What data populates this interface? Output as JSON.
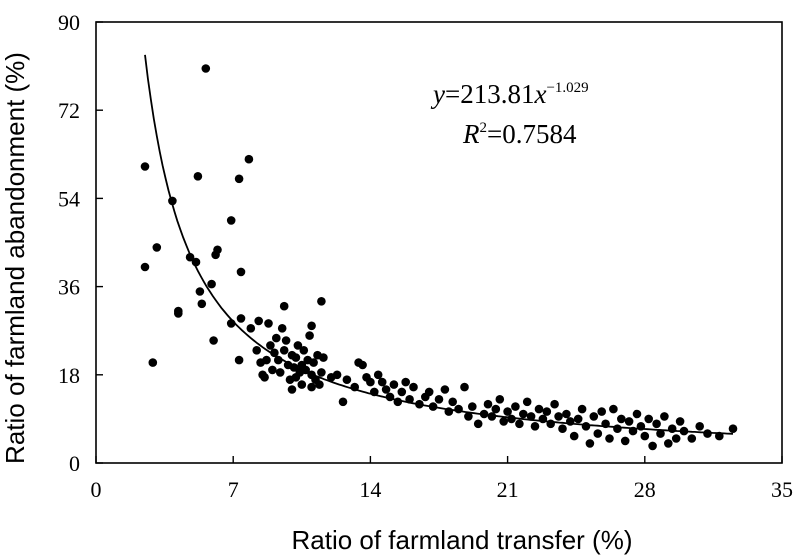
{
  "chart_data": {
    "type": "scatter",
    "xlabel": "Ratio of farmland transfer (%)",
    "ylabel": "Ratio of farmland abandonment (%)",
    "xlim": [
      0,
      35
    ],
    "ylim": [
      0,
      90
    ],
    "xticks": [
      "0",
      "7",
      "14",
      "21",
      "28",
      "35"
    ],
    "yticks": [
      "0",
      "18",
      "36",
      "54",
      "72",
      "90"
    ],
    "grid": false,
    "legend": "none",
    "annotations": {
      "equation": {
        "y": "y",
        "eq1": "=213.81",
        "x": "x",
        "exponent": "−1.029"
      },
      "r2": {
        "r": "R",
        "sup": "2",
        "value": "=0.7584"
      }
    },
    "fit": {
      "type": "power",
      "a": 213.81,
      "b": -1.029,
      "x_range": [
        2.5,
        32.5
      ]
    },
    "series": [
      {
        "points": [
          [
            2.5,
            40
          ],
          [
            2.5,
            60.5
          ],
          [
            2.9,
            20.5
          ],
          [
            3.1,
            44
          ],
          [
            3.9,
            53.5
          ],
          [
            4.2,
            30.5
          ],
          [
            4.2,
            31
          ],
          [
            4.8,
            42
          ],
          [
            5.1,
            41
          ],
          [
            5.2,
            58.5
          ],
          [
            5.3,
            35
          ],
          [
            5.4,
            32.5
          ],
          [
            5.6,
            80.5
          ],
          [
            5.9,
            36.5
          ],
          [
            6.0,
            25
          ],
          [
            6.1,
            42.5
          ],
          [
            6.2,
            43.5
          ],
          [
            6.9,
            28.5
          ],
          [
            6.9,
            49.5
          ],
          [
            7.3,
            58
          ],
          [
            7.3,
            21
          ],
          [
            7.4,
            39
          ],
          [
            7.4,
            29.5
          ],
          [
            7.8,
            62
          ],
          [
            7.9,
            27.5
          ],
          [
            8.2,
            23
          ],
          [
            8.3,
            29
          ],
          [
            8.4,
            20.5
          ],
          [
            8.5,
            18
          ],
          [
            8.6,
            17.5
          ],
          [
            8.7,
            21
          ],
          [
            8.8,
            28.5
          ],
          [
            8.9,
            24
          ],
          [
            9.0,
            19
          ],
          [
            9.1,
            22.5
          ],
          [
            9.2,
            25.5
          ],
          [
            9.3,
            21
          ],
          [
            9.4,
            18.5
          ],
          [
            9.5,
            27.5
          ],
          [
            9.6,
            23
          ],
          [
            9.7,
            25
          ],
          [
            9.8,
            20
          ],
          [
            9.9,
            17
          ],
          [
            10.0,
            22
          ],
          [
            10.0,
            15
          ],
          [
            10.1,
            19.5
          ],
          [
            10.2,
            21.5
          ],
          [
            10.2,
            17.5
          ],
          [
            10.3,
            24
          ],
          [
            10.4,
            18.5
          ],
          [
            10.5,
            20
          ],
          [
            10.5,
            16
          ],
          [
            10.6,
            23
          ],
          [
            10.7,
            19
          ],
          [
            10.8,
            21
          ],
          [
            10.9,
            26
          ],
          [
            11.0,
            15.5
          ],
          [
            11.0,
            18
          ],
          [
            11.1,
            20.5
          ],
          [
            11.2,
            17
          ],
          [
            11.3,
            22
          ],
          [
            11.4,
            16
          ],
          [
            11.5,
            33
          ],
          [
            11.5,
            18.5
          ],
          [
            11.6,
            21.5
          ],
          [
            11.0,
            28
          ],
          [
            9.6,
            32
          ],
          [
            12.0,
            17.5
          ],
          [
            12.3,
            18
          ],
          [
            12.6,
            12.5
          ],
          [
            12.8,
            17
          ],
          [
            13.2,
            15.5
          ],
          [
            13.4,
            20.5
          ],
          [
            13.6,
            20
          ],
          [
            13.8,
            17.5
          ],
          [
            14.0,
            16.5
          ],
          [
            14.2,
            14.5
          ],
          [
            14.4,
            18
          ],
          [
            14.6,
            16.5
          ],
          [
            14.8,
            15
          ],
          [
            15.0,
            13.5
          ],
          [
            15.2,
            16
          ],
          [
            15.4,
            12.5
          ],
          [
            15.6,
            14.5
          ],
          [
            15.8,
            16.5
          ],
          [
            16.0,
            13
          ],
          [
            16.2,
            15.5
          ],
          [
            16.5,
            12
          ],
          [
            16.8,
            13.5
          ],
          [
            17.0,
            14.5
          ],
          [
            17.2,
            11.5
          ],
          [
            17.5,
            13
          ],
          [
            17.8,
            15
          ],
          [
            18.0,
            10.5
          ],
          [
            18.2,
            12.5
          ],
          [
            18.5,
            11
          ],
          [
            18.8,
            15.5
          ],
          [
            19.0,
            9.5
          ],
          [
            19.2,
            11.5
          ],
          [
            19.5,
            8
          ],
          [
            19.8,
            10
          ],
          [
            20.0,
            12
          ],
          [
            20.2,
            9.5
          ],
          [
            20.4,
            11
          ],
          [
            20.6,
            13
          ],
          [
            20.8,
            8.5
          ],
          [
            21.0,
            10.5
          ],
          [
            21.2,
            9
          ],
          [
            21.4,
            11.5
          ],
          [
            21.6,
            8
          ],
          [
            21.8,
            10
          ],
          [
            22.0,
            12.5
          ],
          [
            22.2,
            9.5
          ],
          [
            22.4,
            7.5
          ],
          [
            22.6,
            11
          ],
          [
            22.8,
            9
          ],
          [
            23.0,
            10.5
          ],
          [
            23.2,
            8
          ],
          [
            23.4,
            12
          ],
          [
            23.6,
            9.5
          ],
          [
            23.8,
            7
          ],
          [
            24.0,
            10
          ],
          [
            24.2,
            8.5
          ],
          [
            24.4,
            5.5
          ],
          [
            24.6,
            9
          ],
          [
            24.8,
            11
          ],
          [
            25.0,
            7.5
          ],
          [
            25.2,
            4
          ],
          [
            25.4,
            9.5
          ],
          [
            25.6,
            6
          ],
          [
            25.8,
            10.5
          ],
          [
            26.0,
            8
          ],
          [
            26.2,
            5
          ],
          [
            26.4,
            11
          ],
          [
            26.6,
            7
          ],
          [
            26.8,
            9
          ],
          [
            27.0,
            4.5
          ],
          [
            27.2,
            8.5
          ],
          [
            27.4,
            6.5
          ],
          [
            27.6,
            10
          ],
          [
            27.8,
            7.5
          ],
          [
            28.0,
            5.5
          ],
          [
            28.2,
            9
          ],
          [
            28.4,
            3.5
          ],
          [
            28.6,
            8
          ],
          [
            28.8,
            6
          ],
          [
            29.0,
            9.5
          ],
          [
            29.2,
            4
          ],
          [
            29.4,
            7
          ],
          [
            29.6,
            5
          ],
          [
            29.8,
            8.5
          ],
          [
            30.0,
            6.5
          ],
          [
            30.4,
            5
          ],
          [
            30.8,
            7.5
          ],
          [
            31.2,
            6
          ],
          [
            31.8,
            5.5
          ],
          [
            32.5,
            7
          ]
        ]
      }
    ]
  }
}
